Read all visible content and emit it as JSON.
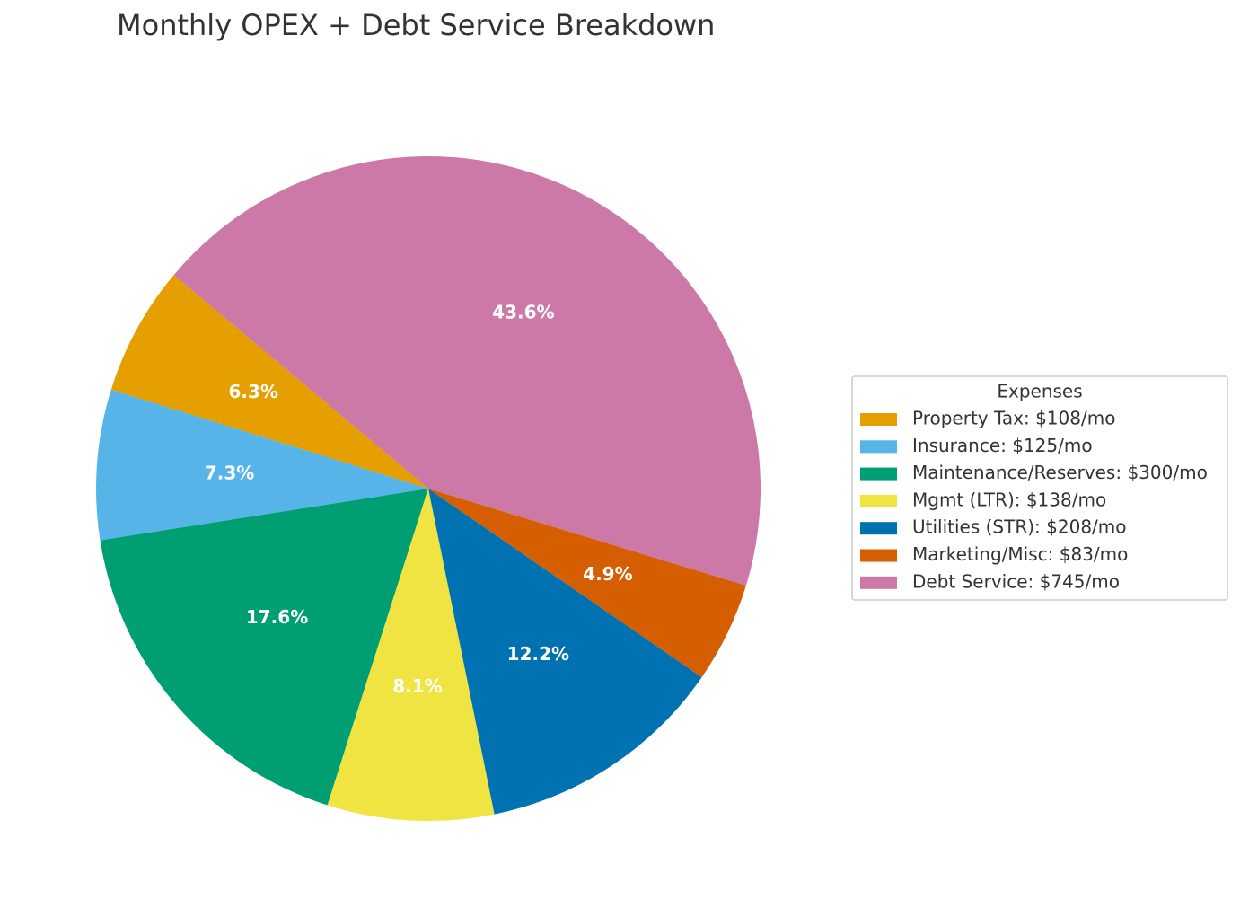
{
  "chart_data": {
    "type": "pie",
    "title": "Monthly OPEX + Debt Service Breakdown",
    "legend_title": "Expenses",
    "categories": [
      "Property Tax: $108/mo",
      "Insurance: $125/mo",
      "Maintenance/Reserves: $300/mo",
      "Mgmt (LTR): $138/mo",
      "Utilities (STR): $208/mo",
      "Marketing/Misc: $83/mo",
      "Debt Service: $745/mo"
    ],
    "values": [
      6.3,
      7.3,
      17.6,
      8.1,
      12.2,
      4.9,
      43.6
    ],
    "value_labels": [
      "6.3%",
      "7.3%",
      "17.6%",
      "8.1%",
      "12.2%",
      "4.9%",
      "43.6%"
    ],
    "colors": [
      "#e69f00",
      "#56b4e9",
      "#009e73",
      "#f0e442",
      "#0072b2",
      "#d55e00",
      "#cc79a7"
    ],
    "startangle": 140
  }
}
